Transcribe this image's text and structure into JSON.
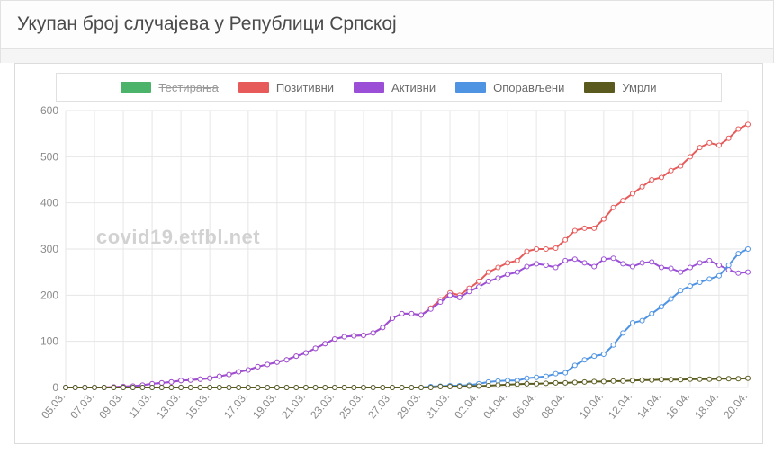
{
  "title": "Укупан број случајева у Републици Српској",
  "watermark": "covid19.etfbl.net",
  "chart": {
    "type": "line",
    "background_color": "#ffffff",
    "grid_color": "#e6e6e6",
    "axis_text_color": "#8a8a8a",
    "axis_fontsize": 12,
    "line_width": 2,
    "marker_radius": 2.5,
    "ylim": [
      0,
      600
    ],
    "ytick_step": 100,
    "x_labels": [
      "05.03.",
      "07.03.",
      "09.03.",
      "11.03.",
      "13.03.",
      "15.03.",
      "17.03.",
      "19.03.",
      "21.03.",
      "23.03.",
      "25.03.",
      "27.03.",
      "29.03.",
      "31.03.",
      "02.04.",
      "04.04.",
      "06.04.",
      "08.04.",
      "10.04.",
      "12.04.",
      "14.04.",
      "16.04.",
      "18.04.",
      "20.04."
    ],
    "legend": {
      "border_color": "#e0e0e0",
      "fontsize": 13,
      "items": [
        {
          "key": "tested",
          "label": "Тестирања",
          "color": "#4bb36a",
          "hidden": true
        },
        {
          "key": "positive",
          "label": "Позитивни",
          "color": "#e75a5a",
          "hidden": false
        },
        {
          "key": "active",
          "label": "Активни",
          "color": "#9b4fd6",
          "hidden": false
        },
        {
          "key": "recovered",
          "label": "Опорављени",
          "color": "#4f93e3",
          "hidden": false
        },
        {
          "key": "deaths",
          "label": "Умрли",
          "color": "#5a5a1f",
          "hidden": false
        }
      ]
    },
    "series": {
      "tested": [],
      "positive": [
        0,
        0,
        0,
        0,
        0,
        1,
        2,
        3,
        5,
        8,
        10,
        12,
        15,
        16,
        18,
        20,
        24,
        28,
        34,
        38,
        45,
        50,
        55,
        60,
        68,
        75,
        85,
        95,
        105,
        110,
        112,
        113,
        118,
        130,
        150,
        160,
        160,
        157,
        172,
        190,
        205,
        200,
        215,
        230,
        250,
        260,
        270,
        275,
        295,
        300,
        300,
        302,
        320,
        340,
        345,
        345,
        365,
        390,
        405,
        420,
        435,
        450,
        455,
        470,
        480,
        500,
        520,
        530,
        525,
        540,
        560,
        570
      ],
      "active": [
        0,
        0,
        0,
        0,
        0,
        1,
        2,
        3,
        5,
        8,
        10,
        12,
        15,
        16,
        18,
        20,
        24,
        28,
        34,
        38,
        45,
        50,
        55,
        60,
        68,
        75,
        85,
        95,
        105,
        110,
        112,
        113,
        118,
        130,
        150,
        160,
        160,
        157,
        170,
        185,
        200,
        195,
        208,
        218,
        230,
        237,
        245,
        250,
        262,
        268,
        265,
        260,
        275,
        278,
        270,
        262,
        278,
        280,
        268,
        262,
        270,
        272,
        260,
        258,
        250,
        260,
        270,
        275,
        265,
        255,
        248,
        250
      ],
      "recovered": [
        0,
        0,
        0,
        0,
        0,
        0,
        0,
        0,
        0,
        0,
        0,
        0,
        0,
        0,
        0,
        0,
        0,
        0,
        0,
        0,
        0,
        0,
        0,
        0,
        0,
        0,
        0,
        0,
        0,
        0,
        0,
        0,
        0,
        0,
        0,
        0,
        0,
        0,
        2,
        3,
        4,
        4,
        5,
        8,
        12,
        14,
        15,
        15,
        20,
        22,
        24,
        30,
        32,
        48,
        60,
        68,
        72,
        92,
        118,
        140,
        145,
        160,
        175,
        192,
        210,
        220,
        228,
        235,
        242,
        265,
        290,
        300
      ],
      "deaths": [
        0,
        0,
        0,
        0,
        0,
        0,
        0,
        0,
        0,
        0,
        0,
        0,
        0,
        0,
        0,
        0,
        0,
        0,
        0,
        0,
        0,
        0,
        0,
        0,
        0,
        0,
        0,
        0,
        0,
        0,
        0,
        0,
        0,
        0,
        0,
        0,
        0,
        0,
        0,
        2,
        2,
        2,
        3,
        3,
        4,
        5,
        6,
        7,
        8,
        8,
        9,
        10,
        10,
        11,
        12,
        13,
        13,
        14,
        14,
        15,
        16,
        16,
        17,
        17,
        17,
        18,
        18,
        18,
        19,
        19,
        19,
        20
      ]
    }
  }
}
